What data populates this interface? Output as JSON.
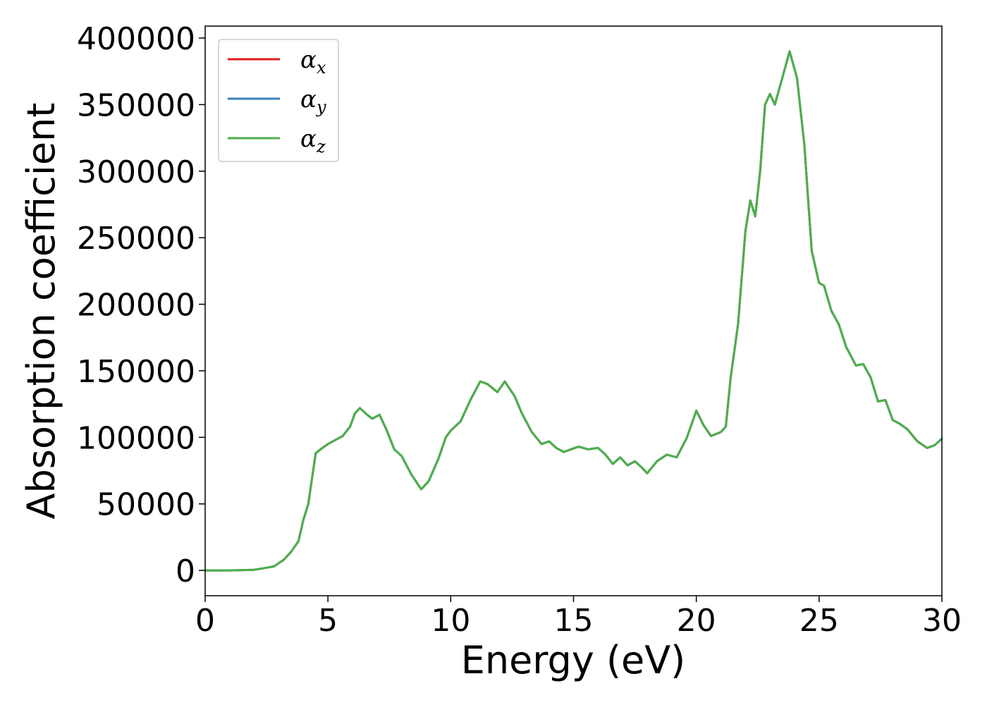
{
  "chart_data": {
    "type": "line",
    "title": "",
    "xlabel": "Energy (eV)",
    "ylabel": "Absorption coefficient",
    "xlim": [
      0,
      30
    ],
    "ylim": [
      -19000,
      409000
    ],
    "xticks": [
      0,
      5,
      10,
      15,
      20,
      25,
      30
    ],
    "xtick_labels": [
      "0",
      "5",
      "10",
      "15",
      "20",
      "25",
      "30"
    ],
    "yticks": [
      0,
      50000,
      100000,
      150000,
      200000,
      250000,
      300000,
      350000,
      400000
    ],
    "ytick_labels": [
      "0",
      "50000",
      "100000",
      "150000",
      "200000",
      "250000",
      "300000",
      "350000",
      "400000"
    ],
    "grid": false,
    "legend_position": "top-left",
    "x": [
      0,
      1,
      2,
      2.8,
      3.2,
      3.5,
      3.8,
      4.0,
      4.2,
      4.5,
      4.7,
      5.0,
      5.3,
      5.6,
      5.9,
      6.1,
      6.3,
      6.6,
      6.8,
      7.1,
      7.4,
      7.7,
      8.0,
      8.4,
      8.8,
      9.1,
      9.5,
      9.8,
      10.0,
      10.4,
      10.8,
      11.2,
      11.5,
      11.9,
      12.2,
      12.6,
      12.9,
      13.3,
      13.7,
      14.0,
      14.3,
      14.6,
      14.9,
      15.2,
      15.6,
      16.0,
      16.3,
      16.6,
      16.9,
      17.2,
      17.5,
      17.8,
      18.0,
      18.4,
      18.8,
      19.2,
      19.6,
      20.0,
      20.3,
      20.6,
      21.0,
      21.2,
      21.4,
      21.7,
      22.0,
      22.2,
      22.4,
      22.6,
      22.8,
      23.0,
      23.2,
      23.5,
      23.8,
      24.1,
      24.4,
      24.7,
      25.0,
      25.2,
      25.5,
      25.8,
      26.1,
      26.5,
      26.8,
      27.1,
      27.4,
      27.7,
      28.0,
      28.3,
      28.6,
      29.0,
      29.4,
      29.7,
      30.0
    ],
    "series": [
      {
        "name": "α_x",
        "name_base": "α",
        "name_sub": "x",
        "color": "#e41a1c",
        "values": [
          0,
          0,
          500,
          3000,
          8000,
          14000,
          22000,
          38000,
          50000,
          88000,
          91000,
          95000,
          98000,
          101000,
          108000,
          118000,
          122000,
          117000,
          114000,
          117000,
          105000,
          91000,
          86000,
          72000,
          61000,
          67000,
          84000,
          100000,
          105000,
          112000,
          128000,
          142000,
          140000,
          134000,
          142000,
          131000,
          118000,
          104000,
          95000,
          97000,
          92000,
          89000,
          91000,
          93000,
          91000,
          92000,
          87000,
          80000,
          85000,
          79000,
          82000,
          77000,
          73000,
          82000,
          87000,
          85000,
          99000,
          120000,
          109000,
          101000,
          104000,
          108000,
          145000,
          185000,
          255000,
          278000,
          266000,
          300000,
          350000,
          358000,
          350000,
          370000,
          390000,
          370000,
          320000,
          240000,
          216000,
          214000,
          195000,
          185000,
          168000,
          154000,
          155000,
          145000,
          127000,
          128000,
          113000,
          110000,
          106000,
          97000,
          92000,
          94000,
          99000
        ]
      },
      {
        "name": "α_y",
        "name_base": "α",
        "name_sub": "y",
        "color": "#377eb8",
        "values": [
          0,
          0,
          500,
          3000,
          8000,
          14000,
          22000,
          38000,
          50000,
          88000,
          91000,
          95000,
          98000,
          101000,
          108000,
          118000,
          122000,
          117000,
          114000,
          117000,
          105000,
          91000,
          86000,
          72000,
          61000,
          67000,
          84000,
          100000,
          105000,
          112000,
          128000,
          142000,
          140000,
          134000,
          142000,
          131000,
          118000,
          104000,
          95000,
          97000,
          92000,
          89000,
          91000,
          93000,
          91000,
          92000,
          87000,
          80000,
          85000,
          79000,
          82000,
          77000,
          73000,
          82000,
          87000,
          85000,
          99000,
          120000,
          109000,
          101000,
          104000,
          108000,
          145000,
          185000,
          255000,
          278000,
          266000,
          300000,
          350000,
          358000,
          350000,
          370000,
          390000,
          370000,
          320000,
          240000,
          216000,
          214000,
          195000,
          185000,
          168000,
          154000,
          155000,
          145000,
          127000,
          128000,
          113000,
          110000,
          106000,
          97000,
          92000,
          94000,
          99000
        ]
      },
      {
        "name": "α_z",
        "name_base": "α",
        "name_sub": "z",
        "color": "#4daf4a",
        "values": [
          0,
          0,
          500,
          3000,
          8000,
          14000,
          22000,
          38000,
          50000,
          88000,
          91000,
          95000,
          98000,
          101000,
          108000,
          118000,
          122000,
          117000,
          114000,
          117000,
          105000,
          91000,
          86000,
          72000,
          61000,
          67000,
          84000,
          100000,
          105000,
          112000,
          128000,
          142000,
          140000,
          134000,
          142000,
          131000,
          118000,
          104000,
          95000,
          97000,
          92000,
          89000,
          91000,
          93000,
          91000,
          92000,
          87000,
          80000,
          85000,
          79000,
          82000,
          77000,
          73000,
          82000,
          87000,
          85000,
          99000,
          120000,
          109000,
          101000,
          104000,
          108000,
          145000,
          185000,
          255000,
          278000,
          266000,
          300000,
          350000,
          358000,
          350000,
          370000,
          390000,
          370000,
          320000,
          240000,
          216000,
          214000,
          195000,
          185000,
          168000,
          154000,
          155000,
          145000,
          127000,
          128000,
          113000,
          110000,
          106000,
          97000,
          92000,
          94000,
          99000
        ]
      }
    ]
  }
}
